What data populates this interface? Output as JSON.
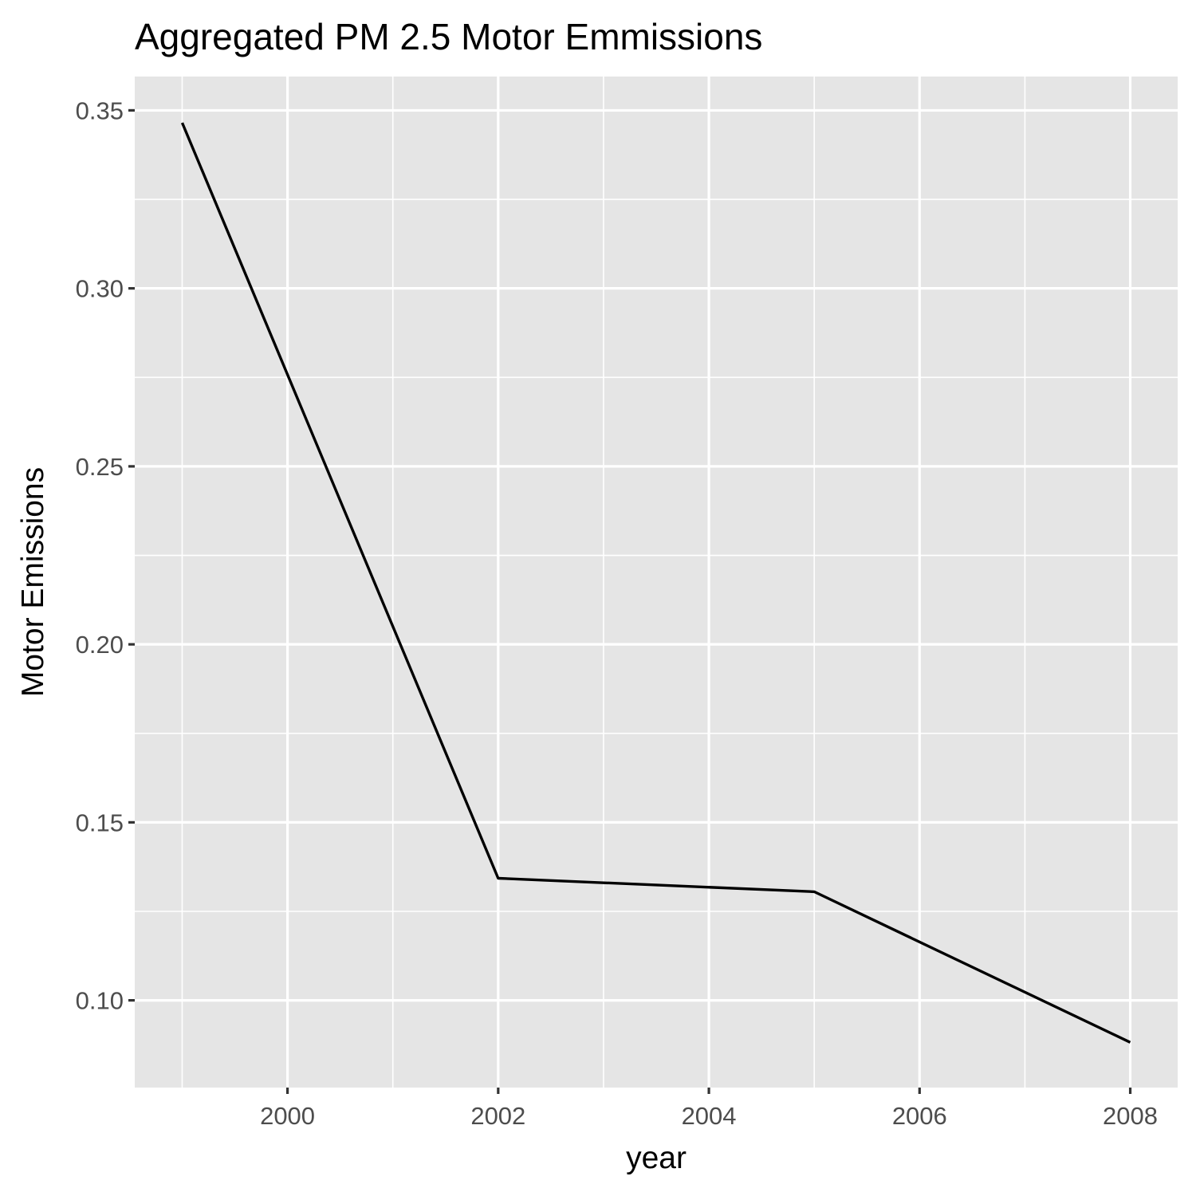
{
  "chart_data": {
    "type": "line",
    "title": "Aggregated PM 2.5 Motor Emmissions",
    "xlabel": "year",
    "ylabel": "Motor Emissions",
    "x": [
      1999,
      2002,
      2005,
      2008
    ],
    "series": [
      {
        "values": [
          0.3465,
          0.1343,
          0.1305,
          0.0882
        ]
      }
    ],
    "xlim": [
      1998.55,
      2008.45
    ],
    "ylim": [
      0.0755,
      0.3595
    ],
    "x_ticks": [
      2000,
      2002,
      2004,
      2006,
      2008
    ],
    "x_tick_labels": [
      "2000",
      "2002",
      "2004",
      "2006",
      "2008"
    ],
    "y_ticks": [
      0.1,
      0.15,
      0.2,
      0.25,
      0.3,
      0.35
    ],
    "y_tick_labels": [
      "0.10",
      "0.15",
      "0.20",
      "0.25",
      "0.30",
      "0.35"
    ],
    "grid": true,
    "legend": "none",
    "panel_color": "#e5e5e5",
    "grid_color": "#ffffff",
    "line_color": "#000000"
  }
}
